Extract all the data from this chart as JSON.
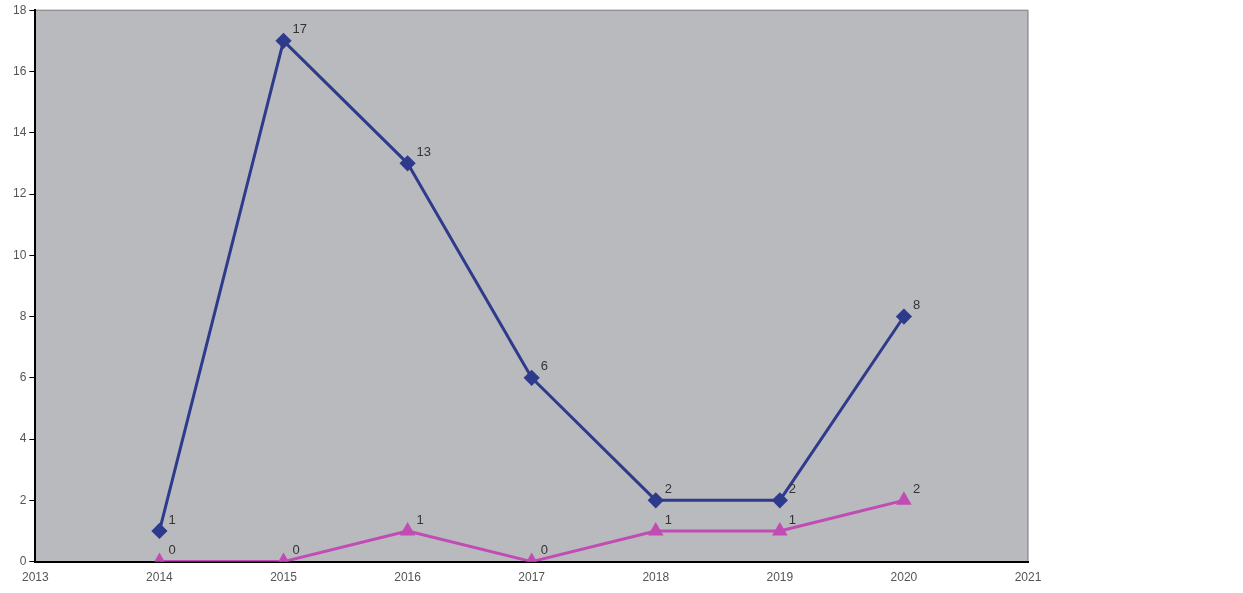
{
  "chart_data": {
    "type": "line",
    "x": [
      2014,
      2015,
      2016,
      2017,
      2018,
      2019,
      2020
    ],
    "series": [
      {
        "color": "#2e3a8c",
        "marker": "diamond",
        "values": [
          1,
          17,
          13,
          6,
          2,
          2,
          8
        ]
      },
      {
        "color": "#c04cb4",
        "marker": "triangle",
        "values": [
          0,
          0,
          1,
          0,
          1,
          1,
          2
        ]
      }
    ],
    "xlim": [
      2013,
      2021
    ],
    "xticks": [
      2013,
      2014,
      2015,
      2016,
      2017,
      2018,
      2019,
      2020,
      2021
    ],
    "ylim": [
      0,
      18
    ],
    "yticks": [
      0,
      2,
      4,
      6,
      8,
      10,
      12,
      14,
      16,
      18
    ],
    "grid": false,
    "legend": false,
    "data_labels": true
  }
}
